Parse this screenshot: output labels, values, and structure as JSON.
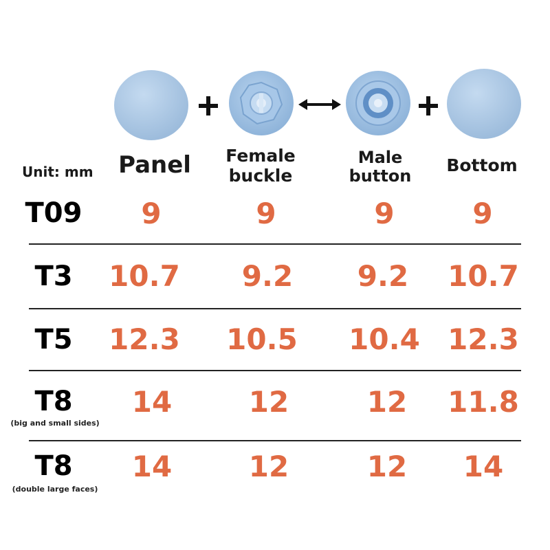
{
  "header": {
    "unit_label": "Unit: mm",
    "columns": [
      {
        "label_line1": "Panel",
        "label_line2": "",
        "icon": "panel-cap-icon"
      },
      {
        "label_line1": "Female",
        "label_line2": "buckle",
        "icon": "female-buckle-icon"
      },
      {
        "label_line1": "Male",
        "label_line2": "button",
        "icon": "male-button-icon"
      },
      {
        "label_line1": "Bottom",
        "label_line2": "",
        "icon": "bottom-cap-icon"
      }
    ],
    "operators": [
      "+",
      "↔",
      "+"
    ]
  },
  "rows": [
    {
      "model": "T09",
      "note": "",
      "values": [
        "9",
        "9",
        "9",
        "9"
      ]
    },
    {
      "model": "T3",
      "note": "",
      "values": [
        "10.7",
        "9.2",
        "9.2",
        "10.7"
      ]
    },
    {
      "model": "T5",
      "note": "",
      "values": [
        "12.3",
        "10.5",
        "10.4",
        "12.3"
      ]
    },
    {
      "model": "T8",
      "note": "(big and small sides)",
      "values": [
        "14",
        "12",
        "12",
        "11.8"
      ]
    },
    {
      "model": "T8",
      "note": "(double large faces)",
      "values": [
        "14",
        "12",
        "12",
        "14"
      ]
    }
  ],
  "colors": {
    "value": "#e06a43",
    "part_fill": "#aac8e6",
    "divider": "#222222"
  }
}
